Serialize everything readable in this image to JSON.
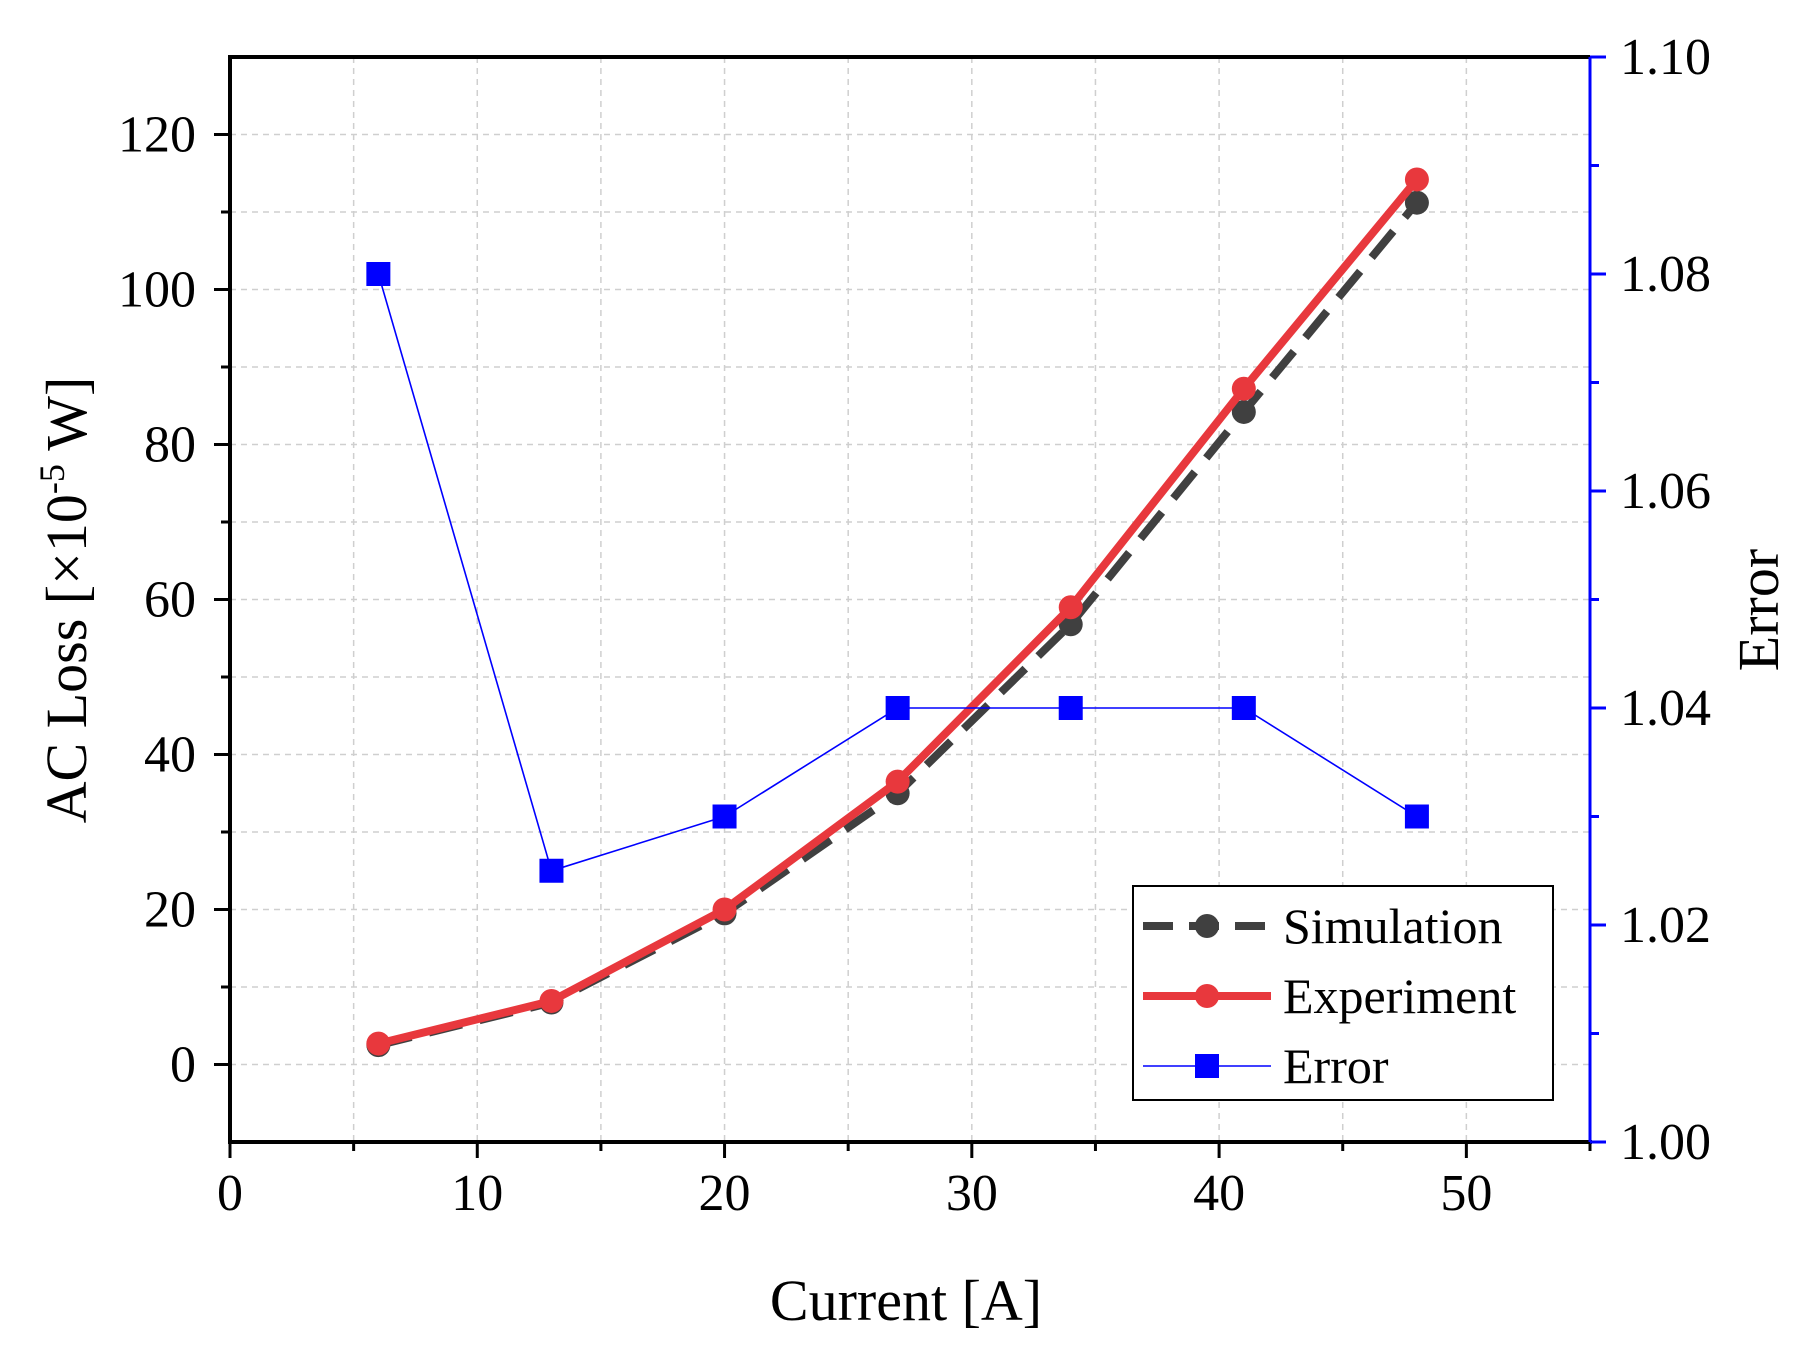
{
  "chart_data": {
    "type": "line",
    "x": [
      6,
      13,
      20,
      27,
      34,
      41,
      48
    ],
    "series": [
      {
        "name": "Simulation",
        "axis": "left",
        "values": [
          2.5,
          8.0,
          19.5,
          35.0,
          56.8,
          84.2,
          111.2
        ],
        "color": "#404040",
        "line_style": "dashed",
        "marker": "circle"
      },
      {
        "name": "Experiment",
        "axis": "left",
        "values": [
          2.7,
          8.2,
          20.0,
          36.5,
          59.0,
          87.2,
          114.2
        ],
        "color": "#e8383d",
        "line_style": "solid",
        "marker": "circle"
      },
      {
        "name": "Error",
        "axis": "right",
        "values": [
          1.08,
          1.025,
          1.03,
          1.04,
          1.04,
          1.04,
          1.03
        ],
        "color": "#0000ff",
        "line_style": "thin",
        "marker": "square"
      }
    ],
    "xlabel": "Current [A]",
    "ylabel": {
      "main": "AC Loss [×10",
      "superscript": "-5",
      "unit": " W]"
    },
    "y2label": "Error",
    "xlim": [
      0,
      55
    ],
    "ylim": [
      -10,
      130
    ],
    "y2lim": [
      1.0,
      1.1
    ],
    "xticks": [
      "0",
      "10",
      "20",
      "30",
      "40",
      "50"
    ],
    "yticks": [
      "0",
      "20",
      "40",
      "60",
      "80",
      "100",
      "120"
    ],
    "y2ticks": [
      "1.00",
      "1.02",
      "1.04",
      "1.06",
      "1.08",
      "1.10"
    ],
    "grid": true,
    "legend_position": "bottom-right",
    "right_axis_color": "#0000ff"
  }
}
